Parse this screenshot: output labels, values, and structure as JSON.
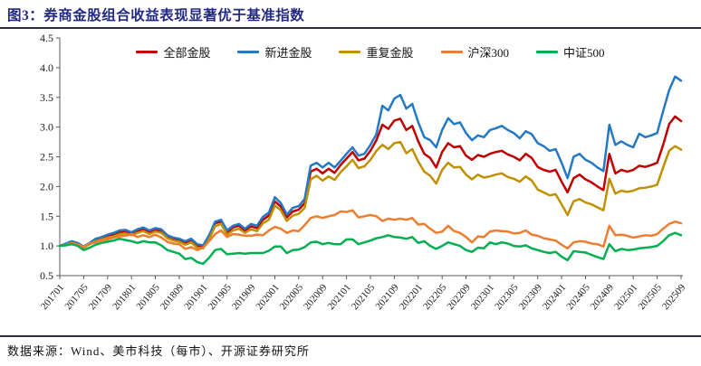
{
  "title": "图3：券商金股组合收益表现显著优于基准指数",
  "footer": {
    "source": "数据来源：Wind、美市科技（每市）、开源证券研究所"
  },
  "colors": {
    "title_navy": "#222A81",
    "axis_gray": "#595959",
    "divider_dark": "#2e2e38",
    "all_gold_red": "#C00000",
    "new_gold_blue": "#2479C4",
    "repeat_gold_yellow": "#BF9000",
    "hs300_orange": "#ED7D31",
    "zz500_green": "#00B050"
  },
  "chart_data": {
    "type": "line",
    "title": "券商金股组合收益表现显著优于基准指数",
    "x_start": "201701",
    "x_end": "202509",
    "x_freq": "monthly",
    "x_tick_labels": [
      "201701",
      "201705",
      "201709",
      "201801",
      "201805",
      "201809",
      "201901",
      "201905",
      "201909",
      "202001",
      "202005",
      "202009",
      "202101",
      "202105",
      "202109",
      "202201",
      "202205",
      "202209",
      "202301",
      "202305",
      "202309",
      "202401",
      "202405",
      "202409",
      "202501",
      "202505",
      "202509"
    ],
    "x_tick_step_months": 4,
    "ylim": [
      0.5,
      4.5
    ],
    "y_ticks": [
      0.5,
      1.0,
      1.5,
      2.0,
      2.5,
      3.0,
      3.5,
      4.0,
      4.5
    ],
    "grid": false,
    "legend_position": "top",
    "series": [
      {
        "name": "全部金股",
        "color": "#C00000",
        "values": [
          1.0,
          1.03,
          1.06,
          1.04,
          0.98,
          1.04,
          1.1,
          1.13,
          1.16,
          1.19,
          1.23,
          1.24,
          1.2,
          1.25,
          1.28,
          1.23,
          1.27,
          1.25,
          1.15,
          1.11,
          1.09,
          1.05,
          1.09,
          1.0,
          0.99,
          1.15,
          1.38,
          1.41,
          1.23,
          1.31,
          1.34,
          1.26,
          1.33,
          1.3,
          1.44,
          1.51,
          1.75,
          1.66,
          1.48,
          1.58,
          1.61,
          1.72,
          2.25,
          2.3,
          2.22,
          2.3,
          2.23,
          2.36,
          2.47,
          2.58,
          2.44,
          2.47,
          2.6,
          2.78,
          3.04,
          2.97,
          3.11,
          3.14,
          2.95,
          3.02,
          2.76,
          2.55,
          2.48,
          2.32,
          2.58,
          2.73,
          2.66,
          2.68,
          2.52,
          2.45,
          2.53,
          2.5,
          2.55,
          2.58,
          2.6,
          2.54,
          2.5,
          2.44,
          2.55,
          2.48,
          2.33,
          2.28,
          2.25,
          2.28,
          2.08,
          1.9,
          2.14,
          2.2,
          2.12,
          2.07,
          2.0,
          1.94,
          2.55,
          2.22,
          2.28,
          2.25,
          2.28,
          2.35,
          2.33,
          2.36,
          2.4,
          2.7,
          3.05,
          3.18,
          3.1
        ]
      },
      {
        "name": "新进金股",
        "color": "#2479C4",
        "values": [
          1.0,
          1.04,
          1.08,
          1.05,
          0.99,
          1.05,
          1.12,
          1.15,
          1.19,
          1.22,
          1.26,
          1.27,
          1.23,
          1.28,
          1.31,
          1.26,
          1.3,
          1.28,
          1.18,
          1.14,
          1.12,
          1.08,
          1.12,
          1.03,
          1.01,
          1.18,
          1.41,
          1.44,
          1.26,
          1.34,
          1.37,
          1.29,
          1.37,
          1.34,
          1.49,
          1.56,
          1.82,
          1.72,
          1.53,
          1.64,
          1.67,
          1.79,
          2.35,
          2.4,
          2.32,
          2.4,
          2.32,
          2.43,
          2.55,
          2.66,
          2.52,
          2.55,
          2.7,
          2.88,
          3.36,
          3.28,
          3.48,
          3.54,
          3.31,
          3.39,
          3.08,
          2.83,
          2.78,
          2.66,
          2.95,
          3.15,
          3.05,
          3.08,
          2.9,
          2.78,
          2.86,
          2.83,
          2.95,
          2.98,
          3.02,
          2.95,
          2.9,
          2.81,
          2.93,
          2.88,
          2.73,
          2.68,
          2.6,
          2.63,
          2.4,
          2.14,
          2.5,
          2.55,
          2.45,
          2.4,
          2.32,
          2.26,
          3.04,
          2.7,
          2.76,
          2.7,
          2.66,
          2.89,
          2.83,
          2.86,
          2.9,
          3.27,
          3.62,
          3.85,
          3.78
        ]
      },
      {
        "name": "重复金股",
        "color": "#BF9000",
        "values": [
          1.0,
          1.02,
          1.05,
          1.03,
          0.97,
          1.03,
          1.08,
          1.11,
          1.14,
          1.16,
          1.2,
          1.21,
          1.18,
          1.22,
          1.25,
          1.2,
          1.24,
          1.22,
          1.13,
          1.09,
          1.07,
          1.02,
          1.06,
          0.97,
          0.96,
          1.11,
          1.33,
          1.37,
          1.19,
          1.26,
          1.29,
          1.22,
          1.28,
          1.25,
          1.38,
          1.44,
          1.68,
          1.6,
          1.42,
          1.51,
          1.54,
          1.64,
          2.12,
          2.18,
          2.1,
          2.17,
          2.11,
          2.24,
          2.34,
          2.45,
          2.31,
          2.34,
          2.45,
          2.6,
          2.7,
          2.63,
          2.73,
          2.75,
          2.56,
          2.63,
          2.42,
          2.25,
          2.18,
          2.05,
          2.28,
          2.4,
          2.32,
          2.33,
          2.2,
          2.12,
          2.2,
          2.15,
          2.17,
          2.2,
          2.22,
          2.16,
          2.13,
          2.08,
          2.17,
          2.1,
          1.95,
          1.9,
          1.85,
          1.87,
          1.7,
          1.52,
          1.75,
          1.79,
          1.73,
          1.7,
          1.65,
          1.6,
          2.13,
          1.88,
          1.93,
          1.91,
          1.93,
          1.97,
          1.98,
          2.0,
          2.03,
          2.32,
          2.6,
          2.68,
          2.62
        ]
      },
      {
        "name": "沪深300",
        "color": "#ED7D31",
        "values": [
          1.0,
          1.02,
          1.04,
          1.03,
          0.98,
          1.04,
          1.06,
          1.09,
          1.11,
          1.14,
          1.16,
          1.17,
          1.2,
          1.15,
          1.18,
          1.15,
          1.19,
          1.14,
          1.07,
          1.04,
          1.03,
          0.95,
          0.98,
          0.93,
          0.97,
          1.08,
          1.2,
          1.26,
          1.15,
          1.2,
          1.19,
          1.17,
          1.17,
          1.19,
          1.18,
          1.26,
          1.32,
          1.29,
          1.22,
          1.26,
          1.25,
          1.35,
          1.47,
          1.5,
          1.47,
          1.5,
          1.52,
          1.58,
          1.57,
          1.6,
          1.48,
          1.5,
          1.52,
          1.5,
          1.42,
          1.46,
          1.44,
          1.46,
          1.44,
          1.47,
          1.36,
          1.37,
          1.29,
          1.22,
          1.24,
          1.34,
          1.25,
          1.22,
          1.15,
          1.06,
          1.16,
          1.15,
          1.24,
          1.26,
          1.25,
          1.24,
          1.21,
          1.22,
          1.26,
          1.19,
          1.17,
          1.13,
          1.11,
          1.09,
          1.02,
          0.96,
          1.06,
          1.08,
          1.07,
          1.04,
          1.03,
          0.99,
          1.34,
          1.18,
          1.19,
          1.17,
          1.14,
          1.16,
          1.18,
          1.17,
          1.2,
          1.29,
          1.37,
          1.41,
          1.38
        ]
      },
      {
        "name": "中证500",
        "color": "#00B050",
        "values": [
          1.0,
          1.01,
          1.03,
          1.0,
          0.93,
          0.97,
          1.02,
          1.05,
          1.07,
          1.09,
          1.12,
          1.1,
          1.08,
          1.05,
          1.08,
          1.06,
          1.06,
          1.01,
          0.93,
          0.9,
          0.87,
          0.78,
          0.8,
          0.73,
          0.7,
          0.8,
          0.93,
          0.95,
          0.86,
          0.87,
          0.88,
          0.87,
          0.88,
          0.88,
          0.88,
          0.92,
          0.99,
          0.99,
          0.88,
          0.93,
          0.94,
          0.98,
          1.06,
          1.07,
          1.03,
          1.05,
          1.03,
          1.03,
          1.11,
          1.11,
          1.03,
          1.06,
          1.09,
          1.13,
          1.15,
          1.18,
          1.15,
          1.14,
          1.12,
          1.15,
          1.05,
          1.08,
          1.0,
          0.95,
          1.0,
          1.06,
          1.03,
          1.0,
          0.93,
          0.9,
          0.97,
          0.96,
          1.06,
          1.03,
          1.06,
          1.04,
          1.0,
          0.99,
          1.01,
          0.96,
          0.93,
          0.9,
          0.88,
          0.9,
          0.82,
          0.76,
          0.91,
          0.9,
          0.89,
          0.85,
          0.81,
          0.78,
          1.03,
          0.91,
          0.95,
          0.93,
          0.94,
          0.96,
          0.97,
          0.98,
          1.0,
          1.08,
          1.18,
          1.22,
          1.18
        ]
      }
    ]
  }
}
